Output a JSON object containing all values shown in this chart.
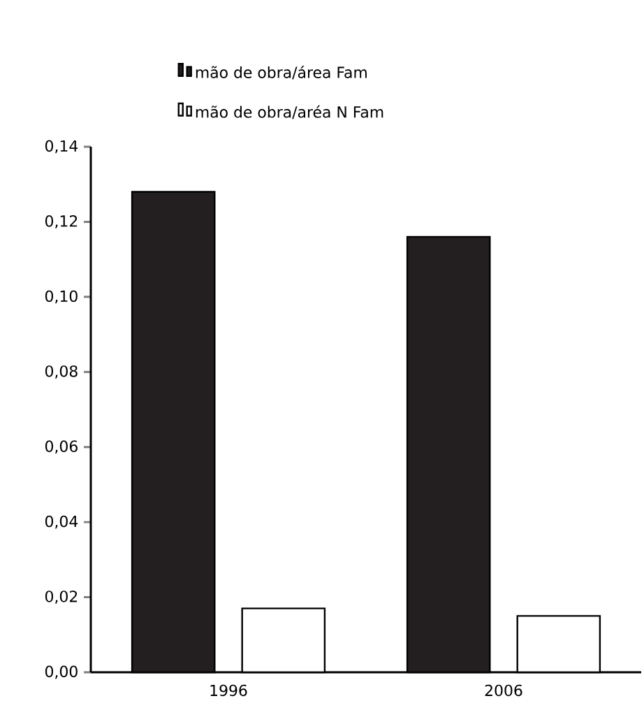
{
  "chart_data": {
    "type": "bar",
    "categories": [
      "1996",
      "2006"
    ],
    "series": [
      {
        "name": "mão de obra/área Fam",
        "color": "#231f20",
        "values": [
          0.128,
          0.116
        ]
      },
      {
        "name": "mão de obra/aréa N Fam",
        "color": "#ffffff",
        "values": [
          0.017,
          0.015
        ]
      }
    ],
    "ylim": [
      0,
      0.14
    ],
    "yticks": [
      {
        "value": 0,
        "label": "0,00"
      },
      {
        "value": 0.02,
        "label": "0,02"
      },
      {
        "value": 0.04,
        "label": "0,04"
      },
      {
        "value": 0.06,
        "label": "0,06"
      },
      {
        "value": 0.08,
        "label": "0,08"
      },
      {
        "value": 0.1,
        "label": "0,10"
      },
      {
        "value": 0.12,
        "label": "0,12"
      },
      {
        "value": 0.14,
        "label": "0,14"
      }
    ],
    "legend": "top",
    "grid": false
  }
}
